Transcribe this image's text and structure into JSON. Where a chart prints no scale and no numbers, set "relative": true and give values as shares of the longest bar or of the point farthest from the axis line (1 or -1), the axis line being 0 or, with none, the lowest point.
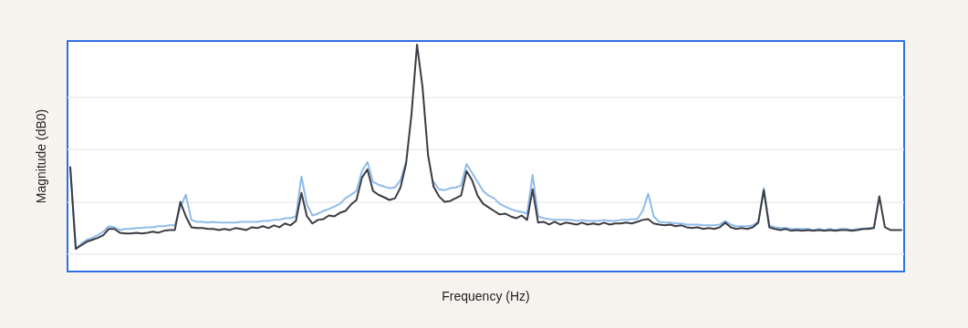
{
  "chart_data": {
    "type": "line",
    "xlabel": "Frequency (Hz)",
    "ylabel": "Magnitude (dB0)",
    "relative": true,
    "grid": "y",
    "marker": "none",
    "line_style": "solid",
    "categories": [
      null,
      null,
      null,
      null,
      null,
      null,
      null,
      null,
      null,
      null,
      null,
      null,
      null,
      null,
      null,
      null,
      null,
      null,
      null,
      null,
      null,
      null,
      null,
      null,
      null,
      null,
      null,
      null,
      null,
      null,
      null,
      null,
      null,
      null,
      null,
      null,
      null,
      null,
      null,
      null,
      null,
      null,
      null,
      null,
      null,
      null,
      null,
      null,
      null,
      null,
      null,
      null,
      null,
      null,
      null,
      null,
      null,
      null,
      null,
      null,
      null,
      null,
      null,
      null,
      null,
      null,
      null,
      null,
      null,
      null,
      null,
      null,
      null,
      null,
      null,
      null,
      null,
      null,
      null,
      null,
      null,
      null,
      null,
      null,
      null,
      null,
      null,
      null,
      null,
      null,
      null,
      null,
      null,
      null,
      null,
      null,
      null,
      null,
      null,
      null,
      null,
      null,
      null,
      null,
      null,
      null,
      null,
      null,
      null,
      null,
      null,
      null,
      null,
      null,
      null,
      null,
      null,
      null,
      null,
      null,
      null,
      null,
      null,
      null,
      null,
      null,
      null,
      null,
      null,
      null,
      null,
      null,
      null,
      null,
      null,
      null,
      null,
      null,
      null,
      null,
      null,
      null,
      null,
      null,
      null,
      null,
      null,
      null,
      null,
      null,
      null,
      null
    ],
    "series": [
      {
        "color": "#8fbcea",
        "values": [
          0.418,
          0.026,
          0.052,
          0.069,
          0.078,
          0.091,
          0.108,
          0.134,
          0.129,
          0.116,
          0.121,
          0.121,
          0.125,
          0.125,
          0.129,
          0.129,
          0.134,
          0.134,
          0.138,
          0.138,
          0.224,
          0.284,
          0.164,
          0.155,
          0.155,
          0.151,
          0.155,
          0.151,
          0.151,
          0.151,
          0.151,
          0.155,
          0.155,
          0.155,
          0.155,
          0.159,
          0.159,
          0.164,
          0.164,
          0.172,
          0.172,
          0.181,
          0.371,
          0.237,
          0.185,
          0.194,
          0.207,
          0.216,
          0.228,
          0.241,
          0.267,
          0.284,
          0.302,
          0.397,
          0.44,
          0.345,
          0.332,
          0.323,
          0.315,
          0.319,
          0.353,
          0.44,
          null,
          null,
          null,
          null,
          0.345,
          0.31,
          0.306,
          0.315,
          0.319,
          0.328,
          0.431,
          0.388,
          0.345,
          0.302,
          0.28,
          0.267,
          0.241,
          0.228,
          0.216,
          0.207,
          0.203,
          0.194,
          0.379,
          0.181,
          0.172,
          0.168,
          0.164,
          0.164,
          0.164,
          0.164,
          0.159,
          0.164,
          0.159,
          0.159,
          0.159,
          0.164,
          0.159,
          0.159,
          0.164,
          0.164,
          0.168,
          0.168,
          0.207,
          0.289,
          0.181,
          0.155,
          0.151,
          0.151,
          0.147,
          0.147,
          0.142,
          0.142,
          0.142,
          0.138,
          0.138,
          0.138,
          0.142,
          0.159,
          0.142,
          0.134,
          0.134,
          0.134,
          0.138,
          0.155,
          0.315,
          0.138,
          0.129,
          0.125,
          0.125,
          0.121,
          0.121,
          0.121,
          0.121,
          0.116,
          0.121,
          0.116,
          0.121,
          0.116,
          0.121,
          0.121,
          0.116,
          0.121,
          0.121,
          0.125,
          0.125,
          0.276,
          null,
          null,
          null,
          null
        ]
      },
      {
        "color": "#3c3c44",
        "values": [
          0.414,
          0.026,
          0.043,
          0.06,
          0.069,
          0.078,
          0.091,
          0.121,
          0.121,
          0.103,
          0.099,
          0.099,
          0.103,
          0.099,
          0.103,
          0.108,
          0.103,
          0.112,
          0.116,
          0.116,
          0.25,
          0.181,
          0.129,
          0.125,
          0.125,
          0.121,
          0.121,
          0.116,
          0.121,
          0.116,
          0.125,
          0.121,
          0.116,
          0.129,
          0.125,
          0.134,
          0.125,
          0.138,
          0.129,
          0.147,
          0.138,
          0.159,
          0.293,
          0.181,
          0.147,
          0.164,
          0.168,
          0.185,
          0.181,
          0.198,
          0.207,
          0.237,
          0.259,
          0.366,
          0.405,
          0.302,
          0.284,
          0.272,
          0.259,
          0.267,
          0.319,
          0.431,
          0.668,
          1,
          0.797,
          0.474,
          0.323,
          0.276,
          0.25,
          0.254,
          0.267,
          0.28,
          0.397,
          0.353,
          0.28,
          0.241,
          0.224,
          0.207,
          0.19,
          0.194,
          0.181,
          0.172,
          0.185,
          0.164,
          0.31,
          0.151,
          0.155,
          0.142,
          0.155,
          0.142,
          0.151,
          0.147,
          0.142,
          0.151,
          0.142,
          0.147,
          0.142,
          0.151,
          0.142,
          0.147,
          0.147,
          0.151,
          0.147,
          0.155,
          0.164,
          0.168,
          0.147,
          0.142,
          0.138,
          0.142,
          0.134,
          0.138,
          0.129,
          0.125,
          0.129,
          0.121,
          0.125,
          0.121,
          0.129,
          0.151,
          0.129,
          0.121,
          0.125,
          0.121,
          0.129,
          0.151,
          0.306,
          0.129,
          0.121,
          0.116,
          0.121,
          0.112,
          0.116,
          0.112,
          0.116,
          0.112,
          0.116,
          0.112,
          0.116,
          0.112,
          0.116,
          0.116,
          0.112,
          0.116,
          0.121,
          0.121,
          0.125,
          0.276,
          0.129,
          0.116,
          0.116,
          0.116
        ]
      }
    ]
  }
}
